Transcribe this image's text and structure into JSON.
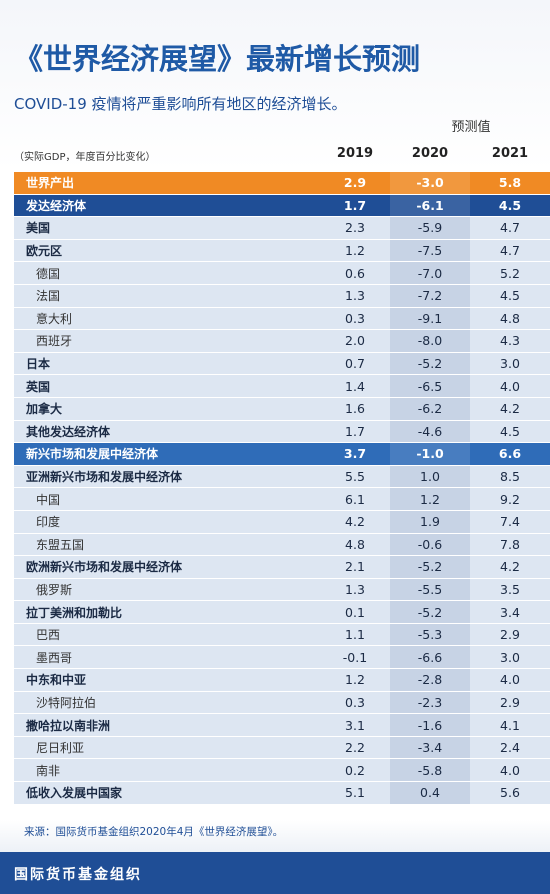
{
  "header": {
    "title": "《世界经济展望》最新增长预测",
    "subtitle": "COVID-19 疫情将严重影响所有地区的经济增长。"
  },
  "table": {
    "forecast_label": "预测值",
    "note": "（实际GDP，年度百分比变化）",
    "columns": [
      "2019",
      "2020",
      "2021"
    ],
    "rows": [
      [
        "世界产出",
        "2.9",
        "-3.0",
        "5.8"
      ],
      [
        "发达经济体",
        "1.7",
        "-6.1",
        "4.5"
      ],
      [
        "美国",
        "2.3",
        "-5.9",
        "4.7"
      ],
      [
        "欧元区",
        "1.2",
        "-7.5",
        "4.7"
      ],
      [
        "德国",
        "0.6",
        "-7.0",
        "5.2"
      ],
      [
        "法国",
        "1.3",
        "-7.2",
        "4.5"
      ],
      [
        "意大利",
        "0.3",
        "-9.1",
        "4.8"
      ],
      [
        "西班牙",
        "2.0",
        "-8.0",
        "4.3"
      ],
      [
        "日本",
        "0.7",
        "-5.2",
        "3.0"
      ],
      [
        "英国",
        "1.4",
        "-6.5",
        "4.0"
      ],
      [
        "加拿大",
        "1.6",
        "-6.2",
        "4.2"
      ],
      [
        "其他发达经济体",
        "1.7",
        "-4.6",
        "4.5"
      ],
      [
        "新兴市场和发展中经济体",
        "3.7",
        "-1.0",
        "6.6"
      ],
      [
        "亚洲新兴市场和发展中经济体",
        "5.5",
        "1.0",
        "8.5"
      ],
      [
        "中国",
        "6.1",
        "1.2",
        "9.2"
      ],
      [
        "印度",
        "4.2",
        "1.9",
        "7.4"
      ],
      [
        "东盟五国",
        "4.8",
        "-0.6",
        "7.8"
      ],
      [
        "欧洲新兴市场和发展中经济体",
        "2.1",
        "-5.2",
        "4.2"
      ],
      [
        "俄罗斯",
        "1.3",
        "-5.5",
        "3.5"
      ],
      [
        "拉丁美洲和加勒比",
        "0.1",
        "-5.2",
        "3.4"
      ],
      [
        "巴西",
        "1.1",
        "-5.3",
        "2.9"
      ],
      [
        "墨西哥",
        "-0.1",
        "-6.6",
        "3.0"
      ],
      [
        "中东和中亚",
        "1.2",
        "-2.8",
        "4.0"
      ],
      [
        "沙特阿拉伯",
        "0.3",
        "-2.3",
        "2.9"
      ],
      [
        "撒哈拉以南非洲",
        "3.1",
        "-1.6",
        "4.1"
      ],
      [
        "尼日利亚",
        "2.2",
        "-3.4",
        "2.4"
      ],
      [
        "南非",
        "0.2",
        "-5.8",
        "4.0"
      ],
      [
        "低收入发展中国家",
        "5.1",
        "0.4",
        "5.6"
      ]
    ]
  },
  "source": "来源：国际货币基金组织2020年4月《世界经济展望》。",
  "footer": "国际货币基金组织"
}
